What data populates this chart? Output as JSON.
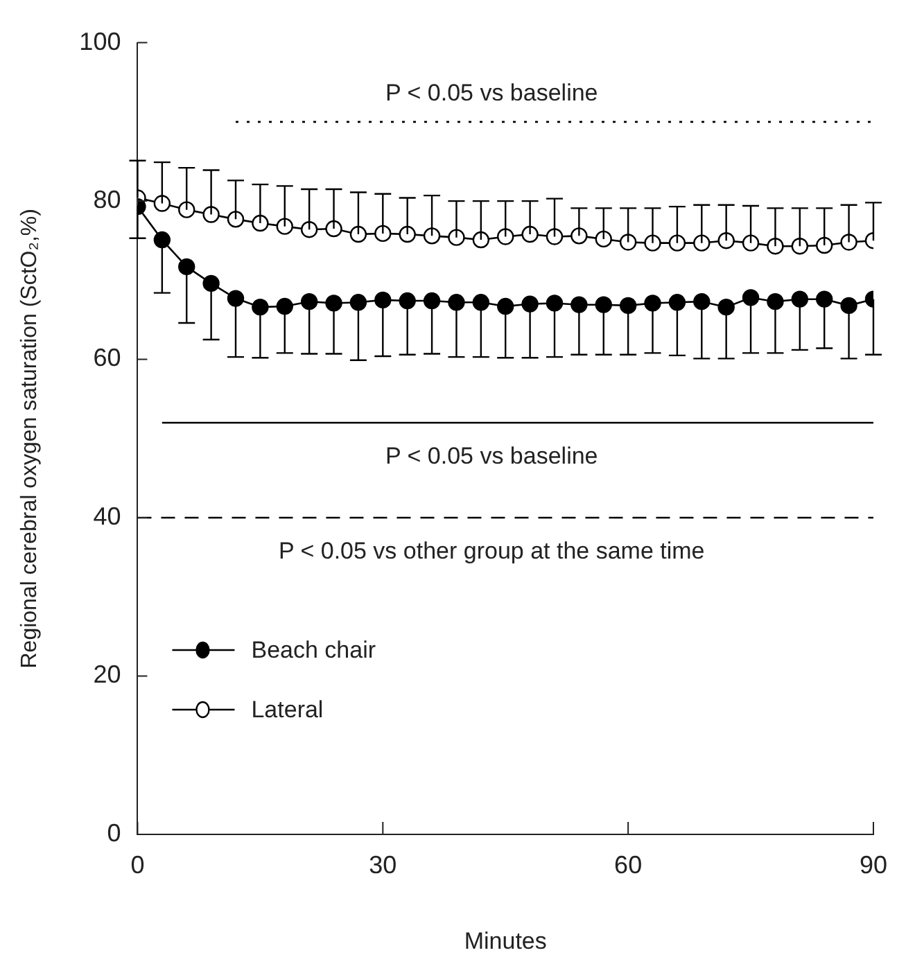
{
  "chart_data": {
    "type": "line",
    "xlabel": "Minutes",
    "ylabel": "Regional cerebral oxygen saturation (SctO₂,%)",
    "x": [
      0,
      3,
      6,
      9,
      12,
      15,
      18,
      21,
      24,
      27,
      30,
      33,
      36,
      39,
      42,
      45,
      48,
      51,
      54,
      57,
      60,
      63,
      66,
      69,
      72,
      75,
      78,
      81,
      84,
      87,
      90
    ],
    "xlim": [
      0,
      90
    ],
    "xticks": [
      0,
      30,
      60,
      90
    ],
    "ylim": [
      0,
      100
    ],
    "yticks": [
      0,
      20,
      40,
      60,
      80,
      100
    ],
    "grid": false,
    "legend": "bottom left",
    "marker": "circle",
    "line_style": "solid",
    "series": [
      {
        "name": "Beach chair",
        "color": "#000000",
        "values": [
          79.3,
          75.1,
          71.7,
          69.6,
          67.7,
          66.6,
          66.7,
          67.3,
          67.1,
          67.2,
          67.5,
          67.4,
          67.4,
          67.2,
          67.2,
          66.7,
          67.0,
          67.1,
          66.9,
          66.9,
          66.8,
          67.1,
          67.2,
          67.3,
          66.6,
          67.8,
          67.3,
          67.6,
          67.6,
          66.8,
          67.6
        ],
        "errors": [
          [
            75.3,
            79.3
          ],
          [
            68.4,
            75.1
          ],
          [
            64.6,
            71.7
          ],
          [
            62.5,
            69.6
          ],
          [
            60.3,
            67.7
          ],
          [
            60.2,
            66.6
          ],
          [
            60.8,
            66.7
          ],
          [
            60.7,
            67.3
          ],
          [
            60.7,
            67.1
          ],
          [
            59.9,
            67.2
          ],
          [
            60.4,
            67.5
          ],
          [
            60.6,
            67.4
          ],
          [
            60.7,
            67.4
          ],
          [
            60.3,
            67.2
          ],
          [
            60.3,
            67.2
          ],
          [
            60.2,
            66.7
          ],
          [
            60.2,
            67.0
          ],
          [
            60.3,
            67.1
          ],
          [
            60.6,
            66.9
          ],
          [
            60.6,
            66.9
          ],
          [
            60.6,
            66.8
          ],
          [
            60.8,
            67.1
          ],
          [
            60.5,
            67.2
          ],
          [
            60.1,
            67.3
          ],
          [
            60.1,
            66.6
          ],
          [
            60.8,
            67.8
          ],
          [
            60.8,
            67.3
          ],
          [
            61.2,
            67.6
          ],
          [
            61.4,
            67.6
          ],
          [
            60.1,
            66.8
          ],
          [
            60.6,
            67.6
          ]
        ]
      },
      {
        "name": "Lateral",
        "color": "#000000",
        "values": [
          80.4,
          79.7,
          78.9,
          78.3,
          77.7,
          77.2,
          76.8,
          76.4,
          76.5,
          75.8,
          75.9,
          75.8,
          75.6,
          75.4,
          75.1,
          75.5,
          75.8,
          75.5,
          75.6,
          75.2,
          74.8,
          74.7,
          74.7,
          74.7,
          75.0,
          74.7,
          74.3,
          74.3,
          74.4,
          74.8,
          75.0
        ],
        "errors": [
          [
            80.4,
            85.1
          ],
          [
            79.7,
            84.9
          ],
          [
            78.9,
            84.2
          ],
          [
            78.3,
            83.9
          ],
          [
            77.7,
            82.6
          ],
          [
            77.2,
            82.1
          ],
          [
            76.8,
            81.9
          ],
          [
            76.4,
            81.5
          ],
          [
            76.5,
            81.5
          ],
          [
            75.8,
            81.1
          ],
          [
            75.9,
            80.9
          ],
          [
            75.8,
            80.4
          ],
          [
            75.6,
            80.7
          ],
          [
            75.4,
            80.0
          ],
          [
            75.1,
            80.0
          ],
          [
            75.5,
            80.0
          ],
          [
            75.8,
            80.0
          ],
          [
            75.5,
            80.3
          ],
          [
            75.6,
            79.1
          ],
          [
            75.2,
            79.1
          ],
          [
            74.8,
            79.1
          ],
          [
            74.7,
            79.1
          ],
          [
            74.7,
            79.3
          ],
          [
            74.7,
            79.5
          ],
          [
            75.0,
            79.5
          ],
          [
            74.7,
            79.4
          ],
          [
            74.3,
            79.1
          ],
          [
            74.3,
            79.1
          ],
          [
            74.4,
            79.1
          ],
          [
            74.8,
            79.5
          ],
          [
            75.0,
            79.8
          ]
        ]
      },
      {
        "type": "line",
        "color": "#000000",
        "x": [
          12,
          90
        ],
        "values": [
          90,
          90
        ],
        "line_style": "dotted",
        "marker": "none"
      },
      {
        "type": "line",
        "color": "#000000",
        "x": [
          3,
          90
        ],
        "values": [
          52,
          52
        ],
        "line_style": "solid",
        "marker": "none"
      },
      {
        "type": "line",
        "color": "#000000",
        "x": [
          0,
          90
        ],
        "values": [
          40,
          40
        ],
        "line_style": "dashed",
        "marker": "none"
      }
    ],
    "annotations": [
      "P < 0.05 vs baseline",
      "P < 0.05 vs baseline",
      "P < 0.05 vs other group at the same time"
    ]
  }
}
